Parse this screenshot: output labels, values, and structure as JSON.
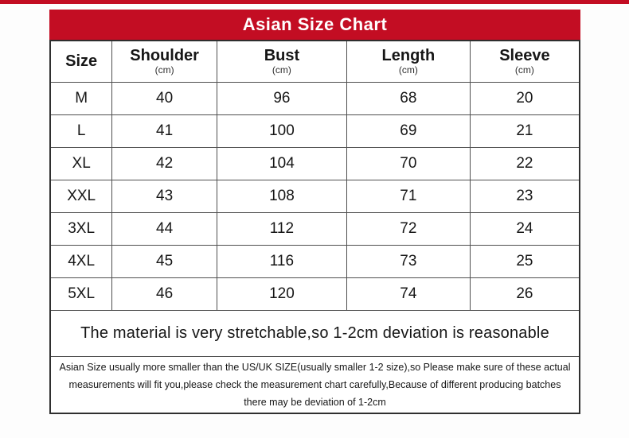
{
  "page": {
    "top_accent_color": "#c30d23"
  },
  "chart_data": {
    "type": "table",
    "title": "Asian Size Chart",
    "title_bar_color": "#c30d23",
    "title_text_color": "#ffffff",
    "columns": [
      {
        "label": "Size",
        "unit": ""
      },
      {
        "label": "Shoulder",
        "unit": "(cm)"
      },
      {
        "label": "Bust",
        "unit": "(cm)"
      },
      {
        "label": "Length",
        "unit": "(cm)"
      },
      {
        "label": "Sleeve",
        "unit": "(cm)"
      }
    ],
    "rows": [
      [
        "M",
        "40",
        "96",
        "68",
        "20"
      ],
      [
        "L",
        "41",
        "100",
        "69",
        "21"
      ],
      [
        "XL",
        "42",
        "104",
        "70",
        "22"
      ],
      [
        "XXL",
        "43",
        "108",
        "71",
        "23"
      ],
      [
        "3XL",
        "44",
        "112",
        "72",
        "24"
      ],
      [
        "4XL",
        "45",
        "116",
        "73",
        "25"
      ],
      [
        "5XL",
        "46",
        "120",
        "74",
        "26"
      ]
    ],
    "stretch_note": "The material is very stretchable,so 1-2cm deviation is reasonable",
    "disclaimer_lines": [
      "Asian Size usually more smaller than the US/UK SIZE(usually smaller 1-2 size),so Please make sure of these actual",
      "measurements will fit you,please check the measurement chart carefully,Because of different producing batches",
      "there may be deviation of 1-2cm"
    ]
  }
}
